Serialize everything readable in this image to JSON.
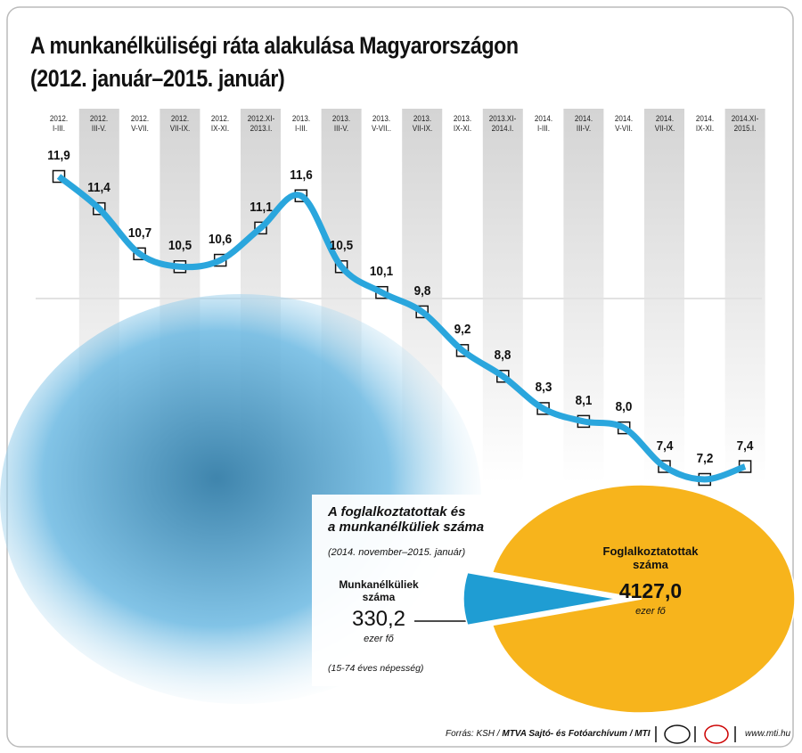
{
  "title": "A munkanélküliségi ráta alakulása Magyarországon",
  "subtitle": "(2012. január–2015. január)",
  "chart_data": [
    {
      "type": "line",
      "categories": [
        "2012.\nI-III.",
        "2012.\nIII-V.",
        "2012.\nV-VII.",
        "2012.\nVII-IX.",
        "2012.\nIX-XI.",
        "2012.XI-\n2013.I.",
        "2013.\nI-III.",
        "2013.\nIII-V.",
        "2013.\nV-VII..",
        "2013.\nVII-IX.",
        "2013.\nIX-XI.",
        "2013.XI-\n2014.I.",
        "2014.\nI-III.",
        "2014.\nIII-V.",
        "2014.\nV-VII.",
        "2014.\nVII-IX.",
        "2014.\nIX-XI.",
        "2014.XI-\n2015.I."
      ],
      "values": [
        11.9,
        11.4,
        10.7,
        10.5,
        10.6,
        11.1,
        11.6,
        10.5,
        10.1,
        9.8,
        9.2,
        8.8,
        8.3,
        8.1,
        8.0,
        7.4,
        7.2,
        7.4
      ],
      "value_labels": [
        "11,9",
        "11,4",
        "10,7",
        "10,5",
        "10,6",
        "11,1",
        "11,6",
        "10,5",
        "10,1",
        "9,8",
        "9,2",
        "8,8",
        "8,3",
        "8,1",
        "8,0",
        "7,4",
        "7,2",
        "7,4"
      ],
      "color": "#2aa6dd"
    },
    {
      "type": "pie",
      "title": "A foglalkoztatottak és\na munkanélküliek száma",
      "subtitle": "(2014. november–2015. január)",
      "categories": [
        "Munkanélküliek\nszáma",
        "Foglalkoztatottak\nszáma"
      ],
      "values": [
        330.2,
        4127.0
      ],
      "value_labels": [
        "330,2",
        "4127,0"
      ],
      "unit": "ezer fő",
      "note": "(15-74 éves népesség)",
      "colors": [
        "#1f9dd3",
        "#f7b41c"
      ]
    }
  ],
  "source": "Forrás: KSH / ",
  "source_bold": "MTVA Sajtó- és Fotóarchívum / MTI",
  "website": "www.mti.hu"
}
